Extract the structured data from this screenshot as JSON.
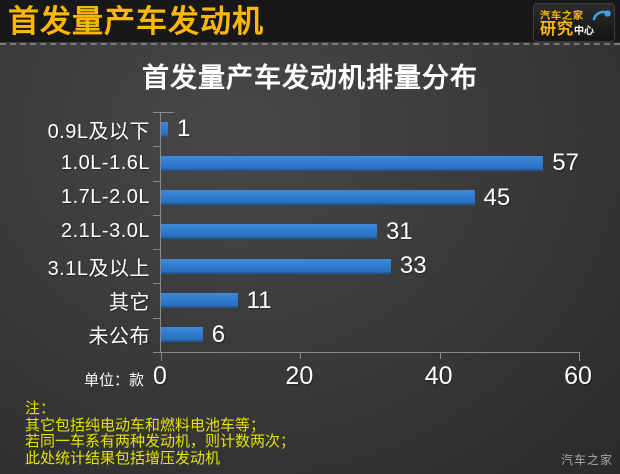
{
  "header": {
    "title": "首发量产车发动机",
    "logo": {
      "line1": "汽车之家",
      "line2_main": "研究",
      "line2_sub": "中心"
    }
  },
  "chart_data": {
    "type": "bar",
    "orientation": "horizontal",
    "title": "首发量产车发动机排量分布",
    "categories": [
      "0.9L及以下",
      "1.0L-1.6L",
      "1.7L-2.0L",
      "2.1L-3.0L",
      "3.1L及以上",
      "其它",
      "未公布"
    ],
    "values": [
      1,
      57,
      45,
      31,
      33,
      11,
      6
    ],
    "xlim": [
      0,
      60
    ],
    "x_ticks": [
      0,
      20,
      40,
      60
    ],
    "unit_label": "单位：款",
    "grid": false,
    "legend": "none",
    "bar_color": "#2e79cc"
  },
  "notes": {
    "title": "注：",
    "lines": [
      "其它包括纯电动车和燃料电池车等；",
      "若同一车系有两种发动机，则计数两次；",
      "此处统计结果包括增压发动机"
    ]
  },
  "watermark": "汽车之家",
  "colors": {
    "background_dark": "#2a2a2a",
    "background_light": "#484848",
    "header_bg": "#181818",
    "header_text": "#fcb805",
    "title_text": "#ffffff",
    "bar": "#2e79cc",
    "axis": "#8a8a8a",
    "notes_text": "#e4e400",
    "watermark_text": "#a8a8a8"
  }
}
